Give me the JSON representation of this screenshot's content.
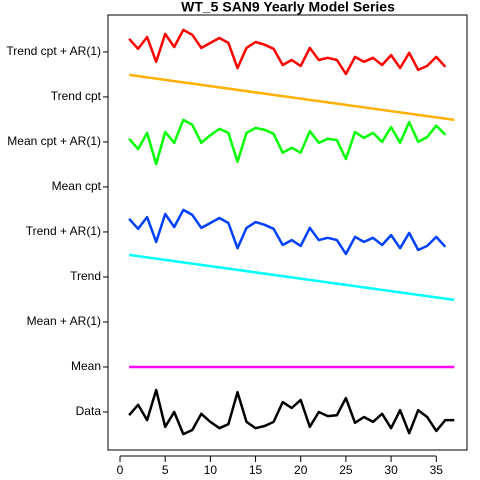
{
  "chart_data": {
    "type": "line",
    "title": "WT_5 SAN9 Yearly Model Series",
    "xlim": [
      -1.33,
      38.4
    ],
    "xticks": [
      0,
      5,
      10,
      15,
      20,
      25,
      30,
      35
    ],
    "ylim": [
      0.156,
      9.82
    ],
    "yticks": [
      {
        "value": 1,
        "label": "Data"
      },
      {
        "value": 2,
        "label": "Mean"
      },
      {
        "value": 3,
        "label": "Mean + AR(1)"
      },
      {
        "value": 4,
        "label": "Trend"
      },
      {
        "value": 5,
        "label": "Trend + AR(1)"
      },
      {
        "value": 6,
        "label": "Mean cpt"
      },
      {
        "value": 7,
        "label": "Mean cpt + AR(1)"
      },
      {
        "value": 8,
        "label": "Trend cpt"
      },
      {
        "value": 9,
        "label": "Trend cpt + AR(1)"
      }
    ],
    "series": [
      {
        "name": "Data",
        "color": "#000000",
        "x": [
          1,
          2,
          3,
          4,
          5,
          6,
          7,
          8,
          9,
          10,
          11,
          12,
          13,
          14,
          15,
          16,
          17,
          18,
          19,
          20,
          21,
          22,
          23,
          24,
          25,
          26,
          27,
          28,
          29,
          30,
          31,
          32,
          33,
          34,
          35,
          36,
          37
        ],
        "values": [
          0.93,
          1.16,
          0.82,
          1.49,
          0.67,
          1.0,
          0.51,
          0.6,
          0.96,
          0.78,
          0.64,
          0.73,
          1.44,
          0.78,
          0.64,
          0.69,
          0.78,
          1.22,
          1.09,
          1.27,
          0.67,
          1.0,
          0.91,
          0.93,
          1.31,
          0.76,
          0.89,
          0.78,
          0.96,
          0.64,
          1.04,
          0.53,
          1.04,
          0.89,
          0.58,
          0.82,
          0.82
        ]
      },
      {
        "name": "Mean",
        "color": "#ff00ff",
        "x": [
          1,
          37
        ],
        "values": [
          2,
          2
        ]
      },
      {
        "name": "Trend",
        "color": "#00ffff",
        "x": [
          1,
          37
        ],
        "values": [
          4.49,
          3.49
        ]
      },
      {
        "name": "Trend + AR(1)",
        "color": "#0040ff",
        "x": [
          1,
          2,
          3,
          4,
          5,
          6,
          7,
          8,
          9,
          10,
          11,
          12,
          13,
          14,
          15,
          16,
          17,
          18,
          19,
          20,
          21,
          22,
          23,
          24,
          25,
          26,
          27,
          28,
          29,
          30,
          31,
          32,
          33,
          34,
          35,
          36
        ],
        "values": [
          5.29,
          5.07,
          5.33,
          4.78,
          5.4,
          5.11,
          5.49,
          5.38,
          5.09,
          5.2,
          5.31,
          5.2,
          4.64,
          5.09,
          5.22,
          5.16,
          5.07,
          4.71,
          4.82,
          4.69,
          5.09,
          4.82,
          4.87,
          4.82,
          4.51,
          4.89,
          4.78,
          4.87,
          4.71,
          4.93,
          4.64,
          4.98,
          4.6,
          4.69,
          4.89,
          4.67
        ]
      },
      {
        "name": "Mean cpt + AR(1)",
        "color": "#00ff00",
        "x": [
          1,
          2,
          3,
          4,
          5,
          6,
          7,
          8,
          9,
          10,
          11,
          12,
          13,
          14,
          15,
          16,
          17,
          18,
          19,
          20,
          21,
          22,
          23,
          24,
          25,
          26,
          27,
          28,
          29,
          30,
          31,
          32,
          33,
          34,
          35,
          36
        ],
        "values": [
          7.07,
          6.84,
          7.2,
          6.51,
          7.22,
          6.98,
          7.49,
          7.38,
          6.98,
          7.15,
          7.29,
          7.2,
          6.56,
          7.2,
          7.31,
          7.27,
          7.18,
          6.76,
          6.87,
          6.76,
          7.24,
          6.98,
          7.07,
          7.04,
          6.62,
          7.22,
          7.09,
          7.2,
          7.0,
          7.33,
          6.98,
          7.44,
          7.0,
          7.11,
          7.36,
          7.16
        ]
      },
      {
        "name": "Trend cpt",
        "color": "#ffb000",
        "x": [
          1,
          37
        ],
        "values": [
          8.49,
          7.49
        ]
      },
      {
        "name": "Trend cpt + AR(1)",
        "color": "#ff0000",
        "x": [
          1,
          2,
          3,
          4,
          5,
          6,
          7,
          8,
          9,
          10,
          11,
          12,
          13,
          14,
          15,
          16,
          17,
          18,
          19,
          20,
          21,
          22,
          23,
          24,
          25,
          26,
          27,
          28,
          29,
          30,
          31,
          32,
          33,
          34,
          35,
          36
        ],
        "values": [
          9.29,
          9.07,
          9.33,
          8.78,
          9.4,
          9.11,
          9.49,
          9.38,
          9.09,
          9.2,
          9.31,
          9.2,
          8.64,
          9.09,
          9.22,
          9.16,
          9.07,
          8.71,
          8.82,
          8.69,
          9.09,
          8.82,
          8.87,
          8.82,
          8.51,
          8.89,
          8.78,
          8.87,
          8.71,
          8.93,
          8.64,
          8.98,
          8.6,
          8.69,
          8.89,
          8.67
        ]
      }
    ]
  }
}
